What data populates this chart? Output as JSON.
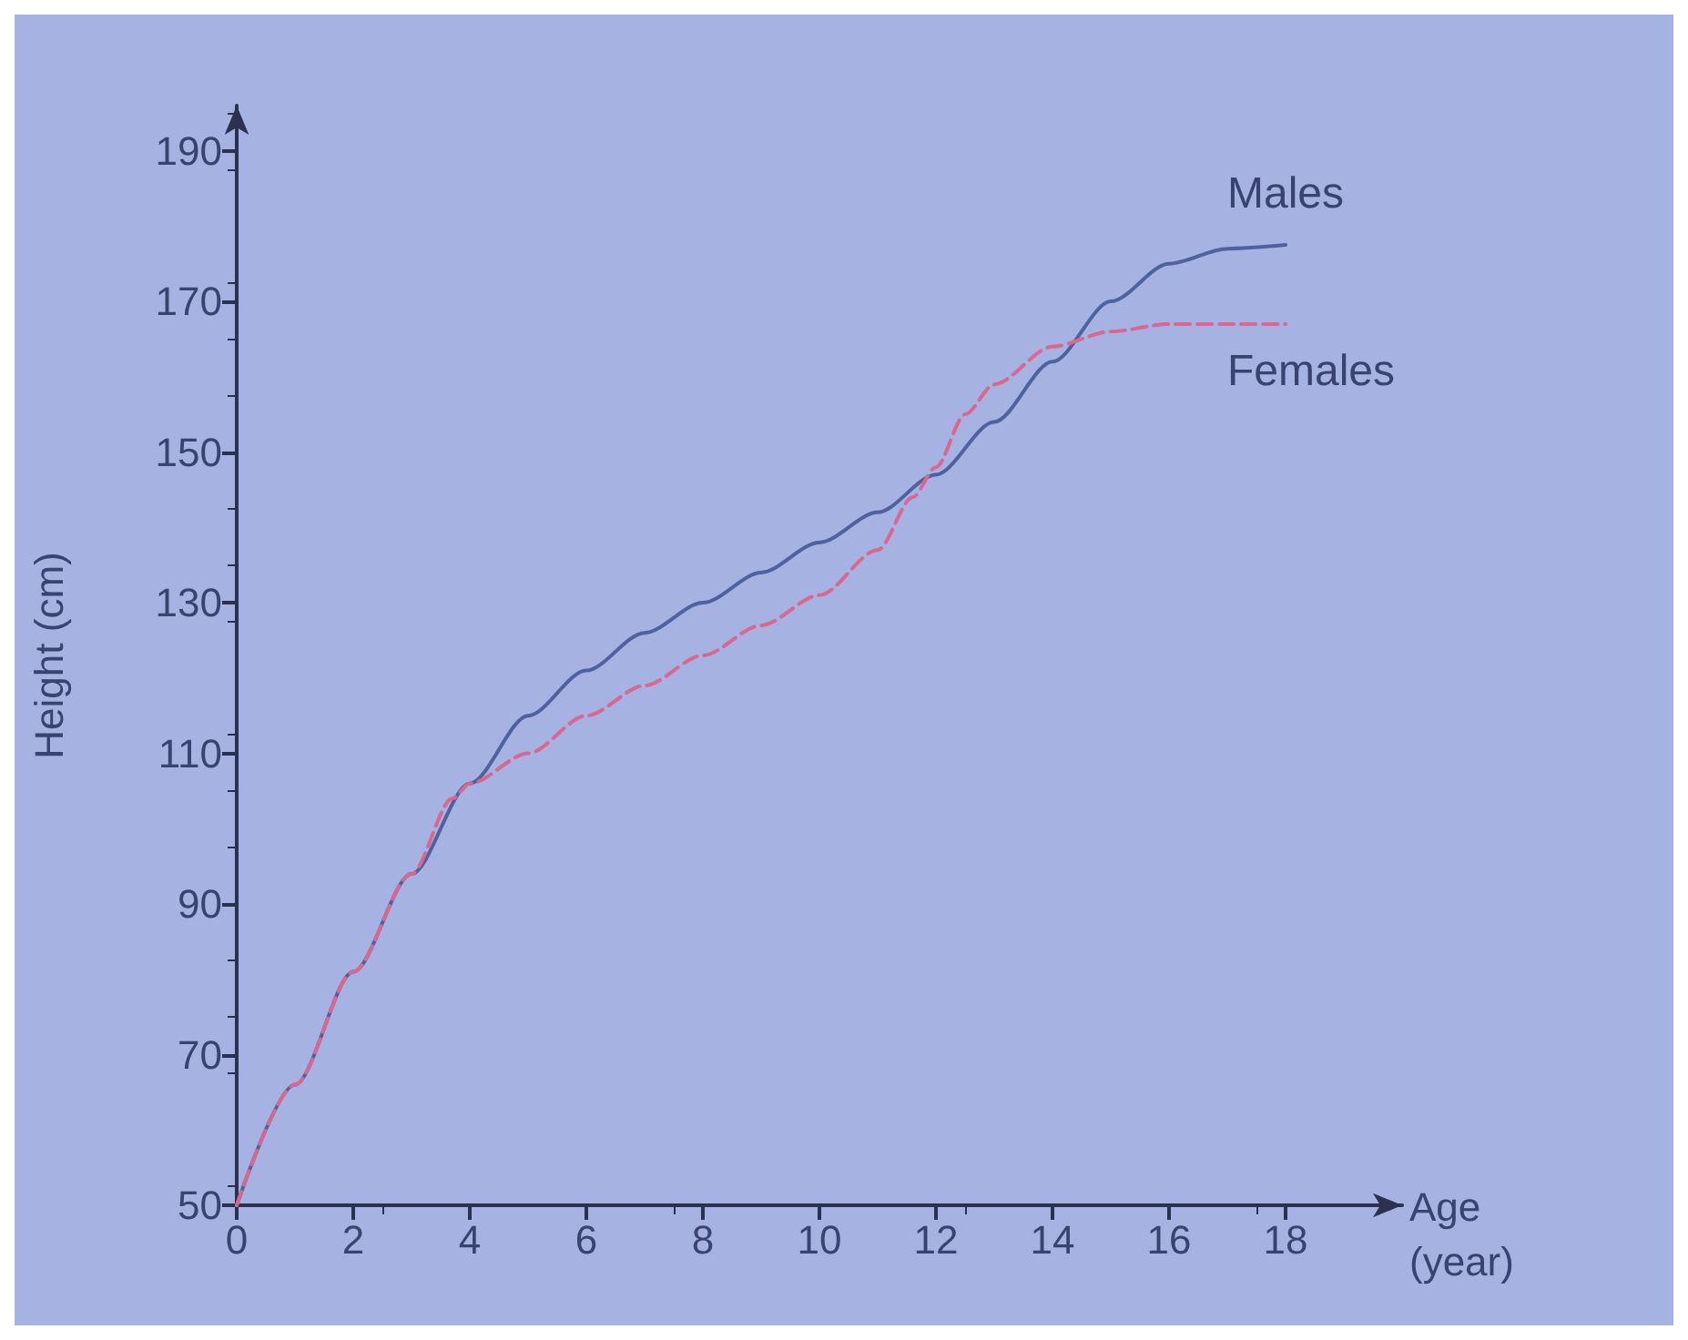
{
  "chart_data": {
    "type": "line",
    "xlabel": "Age\n(year)",
    "ylabel": "Height (cm)",
    "xlim": [
      0,
      20
    ],
    "xticks": [
      0,
      2,
      4,
      6,
      8,
      10,
      12,
      14,
      16,
      18
    ],
    "ylim": [
      50,
      196
    ],
    "yticks": [
      50,
      70,
      90,
      110,
      130,
      150,
      170,
      190
    ],
    "grid": false,
    "legend": false,
    "marker": "none",
    "series": [
      {
        "name": "Males",
        "color": "#4f62a0",
        "line_style": "solid",
        "x": [
          0,
          1,
          2,
          3,
          4,
          5,
          6,
          7,
          8,
          9,
          10,
          11,
          12,
          13,
          14,
          15,
          16,
          17,
          18
        ],
        "values": [
          50,
          66,
          81,
          94,
          106,
          115,
          121,
          126,
          130,
          134,
          138,
          142,
          147,
          154,
          162,
          170,
          175,
          177,
          177.5
        ]
      },
      {
        "name": "Females",
        "color": "#d9678e",
        "line_style": "dashed",
        "x": [
          0,
          1,
          2,
          3,
          3.7,
          4,
          5,
          6,
          7,
          8,
          9,
          10,
          11,
          11.6,
          12,
          12.5,
          13,
          14,
          15,
          16,
          17,
          18
        ],
        "values": [
          50,
          66,
          81,
          94,
          104,
          106,
          110,
          115,
          119,
          123,
          127,
          131,
          137,
          144,
          148,
          155,
          159,
          164,
          166,
          167,
          167,
          167
        ]
      }
    ]
  }
}
